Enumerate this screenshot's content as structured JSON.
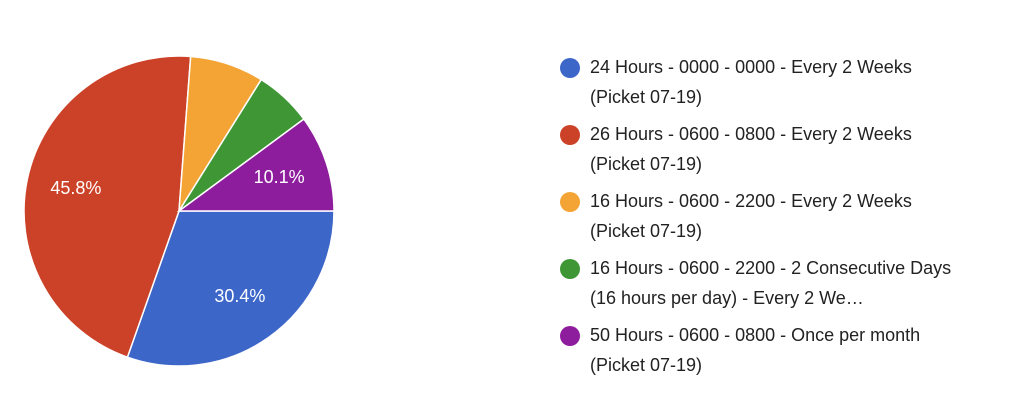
{
  "chart_data": {
    "type": "pie",
    "categories": [
      "24 Hours - 0000 - 0000 - Every 2 Weeks (Picket 07-19)",
      "26 Hours - 0600 - 0800 - Every 2 Weeks (Picket 07-19)",
      "16 Hours - 0600 - 2200 - Every 2 Weeks (Picket 07-19)",
      "16 Hours - 0600 - 2200 - 2 Consecutive Days (16 hours per day) - Every 2 We…",
      "50 Hours - 0600 - 0800 - Once per month (Picket 07-19)"
    ],
    "values": [
      30.4,
      45.8,
      7.7,
      6.0,
      10.1
    ],
    "value_labels": [
      "30.4%",
      "45.8%",
      null,
      null,
      "10.1%"
    ],
    "colors": [
      "#3d66c9",
      "#cc4228",
      "#f4a435",
      "#3f9634",
      "#8e1d9e"
    ]
  }
}
